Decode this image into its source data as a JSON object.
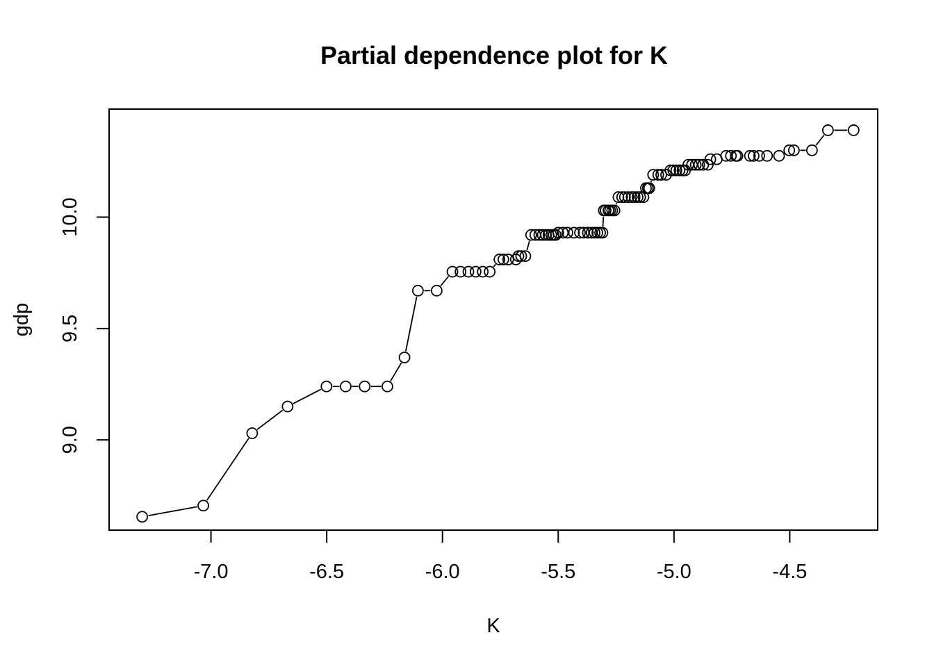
{
  "chart_data": {
    "type": "line",
    "title": "Partial dependence plot for K",
    "xlabel": "K",
    "ylabel": "gdp",
    "xlim": [
      -7.44,
      -4.12
    ],
    "ylim": [
      8.595,
      10.485
    ],
    "xticks": [
      -7.0,
      -6.5,
      -6.0,
      -5.5,
      -5.0,
      -4.5
    ],
    "xtick_labels": [
      "-7.0",
      "-6.5",
      "-6.0",
      "-5.5",
      "-5.0",
      "-4.5"
    ],
    "yticks": [
      9.0,
      9.5,
      10.0
    ],
    "ytick_labels": [
      "9.0",
      "9.5",
      "10.0"
    ],
    "grid": false,
    "series": [
      {
        "style": "points-and-lines",
        "x": [
          -7.297,
          -7.033,
          -6.822,
          -6.669,
          -6.501,
          -6.418,
          -6.336,
          -6.238,
          -6.164,
          -6.106,
          -6.025,
          -5.957,
          -5.922,
          -5.888,
          -5.857,
          -5.826,
          -5.796,
          -5.754,
          -5.737,
          -5.716,
          -5.683,
          -5.672,
          -5.66,
          -5.642,
          -5.617,
          -5.599,
          -5.582,
          -5.567,
          -5.553,
          -5.542,
          -5.53,
          -5.52,
          -5.511,
          -5.5,
          -5.48,
          -5.46,
          -5.432,
          -5.406,
          -5.39,
          -5.372,
          -5.356,
          -5.343,
          -5.331,
          -5.319,
          -5.309,
          -5.303,
          -5.295,
          -5.283,
          -5.276,
          -5.267,
          -5.257,
          -5.24,
          -5.224,
          -5.212,
          -5.197,
          -5.183,
          -5.17,
          -5.157,
          -5.146,
          -5.132,
          -5.121,
          -5.113,
          -5.107,
          -5.09,
          -5.068,
          -5.055,
          -5.034,
          -5.015,
          -5.003,
          -4.99,
          -4.976,
          -4.963,
          -4.952,
          -4.938,
          -4.922,
          -4.906,
          -4.891,
          -4.874,
          -4.854,
          -4.843,
          -4.815,
          -4.775,
          -4.754,
          -4.733,
          -4.726,
          -4.672,
          -4.656,
          -4.632,
          -4.598,
          -4.546,
          -4.502,
          -4.482,
          -4.404,
          -4.335,
          -4.224
        ],
        "y": [
          8.655,
          8.705,
          9.03,
          9.15,
          9.24,
          9.24,
          9.24,
          9.24,
          9.37,
          9.67,
          9.67,
          9.755,
          9.755,
          9.755,
          9.755,
          9.755,
          9.755,
          9.81,
          9.81,
          9.81,
          9.81,
          9.825,
          9.825,
          9.825,
          9.92,
          9.92,
          9.92,
          9.92,
          9.92,
          9.92,
          9.92,
          9.92,
          9.92,
          9.93,
          9.93,
          9.93,
          9.93,
          9.93,
          9.93,
          9.93,
          9.93,
          9.93,
          9.93,
          9.93,
          9.93,
          10.03,
          10.03,
          10.03,
          10.03,
          10.03,
          10.03,
          10.09,
          10.09,
          10.09,
          10.09,
          10.09,
          10.09,
          10.09,
          10.09,
          10.09,
          10.13,
          10.13,
          10.13,
          10.19,
          10.19,
          10.19,
          10.19,
          10.21,
          10.21,
          10.21,
          10.21,
          10.21,
          10.21,
          10.235,
          10.235,
          10.235,
          10.235,
          10.235,
          10.235,
          10.26,
          10.26,
          10.275,
          10.275,
          10.275,
          10.275,
          10.275,
          10.275,
          10.275,
          10.275,
          10.275,
          10.3,
          10.3,
          10.3,
          10.39,
          10.39
        ]
      }
    ]
  }
}
